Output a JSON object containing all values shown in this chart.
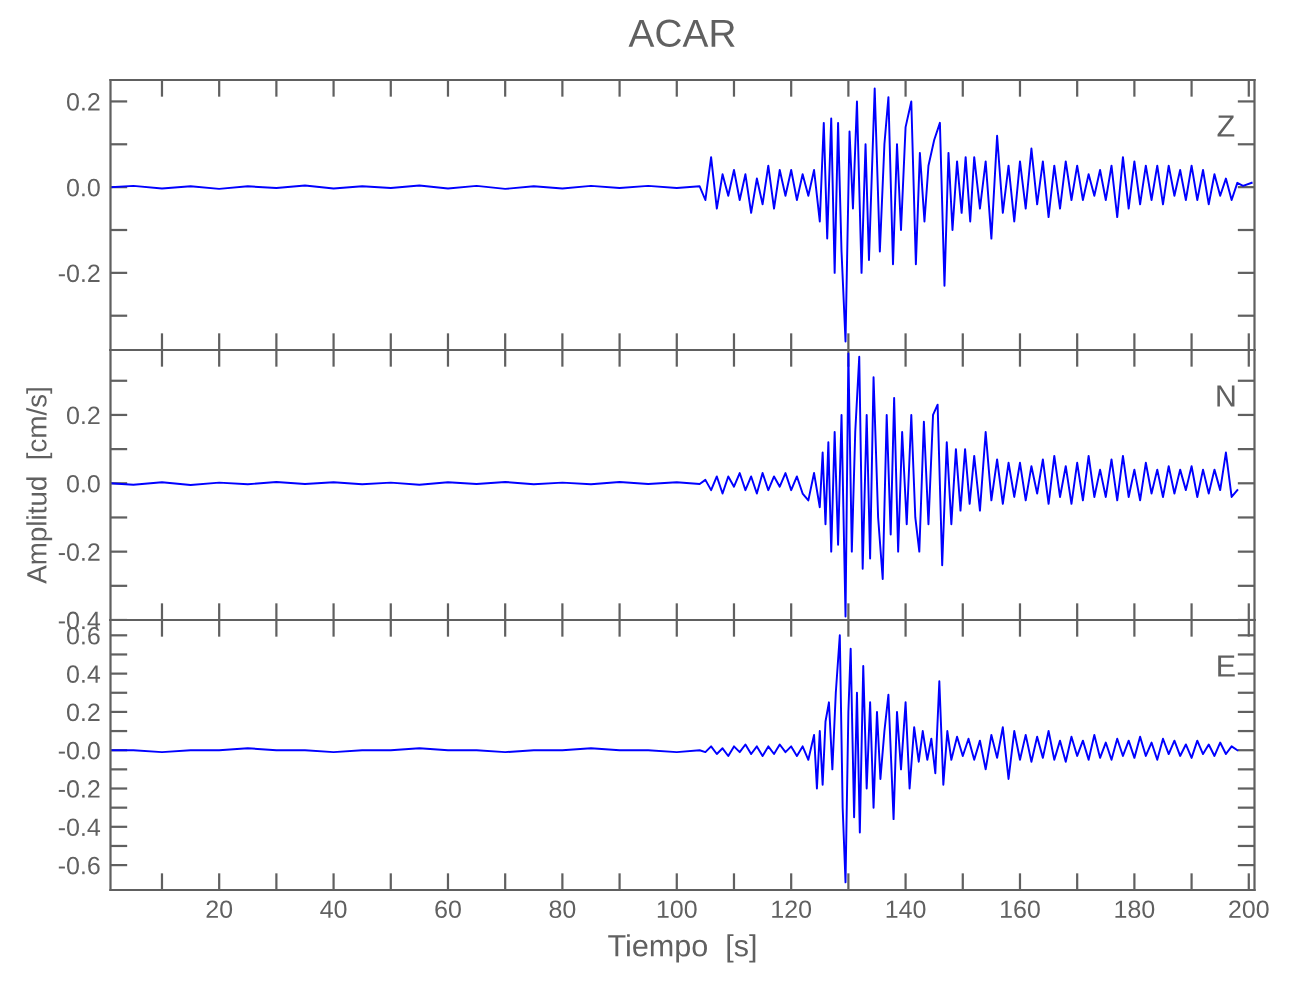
{
  "chart_data": [
    {
      "type": "line",
      "title": "ACAR",
      "annotations": [
        "Z"
      ],
      "tick_labels": "y",
      "xlim": [
        1,
        201
      ],
      "ylim": [
        -0.38,
        0.25
      ],
      "xticks": [
        {
          "value": 10,
          "label": null
        },
        {
          "value": 20,
          "label": null
        },
        {
          "value": 30,
          "label": null
        },
        {
          "value": 40,
          "label": null
        },
        {
          "value": 50,
          "label": null
        },
        {
          "value": 60,
          "label": null
        },
        {
          "value": 70,
          "label": null
        },
        {
          "value": 80,
          "label": null
        },
        {
          "value": 90,
          "label": null
        },
        {
          "value": 100,
          "label": null
        },
        {
          "value": 110,
          "label": null
        },
        {
          "value": 120,
          "label": null
        },
        {
          "value": 130,
          "label": null
        },
        {
          "value": 140,
          "label": null
        },
        {
          "value": 150,
          "label": null
        },
        {
          "value": 160,
          "label": null
        },
        {
          "value": 170,
          "label": null
        },
        {
          "value": 180,
          "label": null
        },
        {
          "value": 190,
          "label": null
        },
        {
          "value": 200,
          "label": null
        }
      ],
      "yticks": [
        {
          "value": -0.3,
          "label": null
        },
        -0.2,
        {
          "value": -0.1,
          "label": null
        },
        {
          "value": 0,
          "label": "0.0"
        },
        {
          "value": 0.1,
          "label": null
        },
        0.2
      ],
      "series": [
        {
          "color": "#0000ff",
          "x": [
            1,
            5,
            10,
            15,
            20,
            25,
            30,
            35,
            40,
            45,
            50,
            55,
            60,
            65,
            70,
            75,
            80,
            85,
            90,
            95,
            100,
            104,
            105,
            106,
            107,
            108,
            109,
            110,
            111,
            112,
            113,
            114,
            115,
            116,
            117,
            118,
            119,
            120,
            121,
            122,
            123,
            124,
            125,
            125.7,
            126.3,
            127,
            127.6,
            128.2,
            128.8,
            129.5,
            130.2,
            130.8,
            131.5,
            132.3,
            133,
            133.6,
            134.6,
            135.5,
            136.3,
            137,
            137.8,
            138.5,
            139.2,
            140,
            141,
            141.8,
            142.5,
            143.3,
            144,
            145,
            146,
            146.8,
            147.5,
            148.2,
            149,
            149.8,
            150.5,
            151.3,
            152,
            153,
            154,
            155,
            156,
            157,
            158,
            159,
            160,
            161,
            162,
            163,
            164,
            165,
            166,
            167,
            168,
            169,
            170,
            171,
            172,
            173,
            174,
            175,
            176,
            177,
            178,
            179,
            180,
            181,
            182,
            183,
            184,
            185,
            186,
            187,
            188,
            189,
            190,
            191,
            192,
            193,
            194,
            195,
            196,
            197,
            198,
            199,
            200.5
          ],
          "values": [
            0,
            0.003,
            -0.003,
            0.002,
            -0.004,
            0.002,
            -0.002,
            0.004,
            -0.003,
            0.002,
            -0.002,
            0.004,
            -0.003,
            0.003,
            -0.004,
            0.002,
            -0.003,
            0.003,
            -0.002,
            0.003,
            -0.002,
            0.002,
            -0.03,
            0.07,
            -0.05,
            0.03,
            -0.02,
            0.04,
            -0.03,
            0.03,
            -0.06,
            0.02,
            -0.04,
            0.05,
            -0.05,
            0.04,
            -0.02,
            0.04,
            -0.03,
            0.03,
            -0.02,
            0.04,
            -0.08,
            0.15,
            -0.12,
            0.16,
            -0.2,
            0.15,
            -0.15,
            -0.36,
            0.13,
            -0.05,
            0.2,
            -0.2,
            0.1,
            -0.17,
            0.23,
            -0.15,
            0.1,
            0.21,
            -0.18,
            0.1,
            -0.1,
            0.14,
            0.2,
            -0.18,
            0.08,
            -0.08,
            0.05,
            0.11,
            0.15,
            -0.23,
            0.08,
            -0.1,
            0.06,
            -0.06,
            0.07,
            -0.08,
            0.07,
            -0.05,
            0.06,
            -0.12,
            0.12,
            -0.06,
            0.05,
            -0.08,
            0.06,
            -0.05,
            0.09,
            -0.04,
            0.06,
            -0.07,
            0.05,
            -0.05,
            0.06,
            -0.03,
            0.05,
            -0.03,
            0.03,
            -0.02,
            0.04,
            -0.03,
            0.05,
            -0.07,
            0.07,
            -0.05,
            0.06,
            -0.04,
            0.05,
            -0.03,
            0.05,
            -0.04,
            0.05,
            -0.02,
            0.04,
            -0.03,
            0.05,
            -0.03,
            0.04,
            -0.04,
            0.03,
            -0.02,
            0.02,
            -0.03,
            0.01,
            0.003,
            0.01
          ]
        }
      ]
    },
    {
      "type": "line",
      "ylabel": "Amplitud  [cm/s]",
      "annotations": [
        "N"
      ],
      "tick_labels": "y",
      "xlim": [
        1,
        201
      ],
      "ylim": [
        -0.4,
        0.39
      ],
      "xticks": [
        {
          "value": 10,
          "label": null
        },
        {
          "value": 20,
          "label": null
        },
        {
          "value": 30,
          "label": null
        },
        {
          "value": 40,
          "label": null
        },
        {
          "value": 50,
          "label": null
        },
        {
          "value": 60,
          "label": null
        },
        {
          "value": 70,
          "label": null
        },
        {
          "value": 80,
          "label": null
        },
        {
          "value": 90,
          "label": null
        },
        {
          "value": 100,
          "label": null
        },
        {
          "value": 110,
          "label": null
        },
        {
          "value": 120,
          "label": null
        },
        {
          "value": 130,
          "label": null
        },
        {
          "value": 140,
          "label": null
        },
        {
          "value": 150,
          "label": null
        },
        {
          "value": 160,
          "label": null
        },
        {
          "value": 170,
          "label": null
        },
        {
          "value": 180,
          "label": null
        },
        {
          "value": 190,
          "label": null
        },
        {
          "value": 200,
          "label": null
        }
      ],
      "yticks": [
        -0.4,
        {
          "value": -0.3,
          "label": null
        },
        -0.2,
        {
          "value": -0.1,
          "label": null
        },
        {
          "value": 0,
          "label": "0.0"
        },
        {
          "value": 0.1,
          "label": null
        },
        0.2,
        {
          "value": 0.3,
          "label": null
        }
      ],
      "series": [
        {
          "color": "#0000ff",
          "x": [
            1,
            5,
            10,
            15,
            20,
            25,
            30,
            35,
            40,
            45,
            50,
            55,
            60,
            65,
            70,
            75,
            80,
            85,
            90,
            95,
            100,
            104,
            105,
            106,
            107,
            108,
            109,
            110,
            111,
            112,
            113,
            114,
            115,
            116,
            117,
            118,
            119,
            120,
            121,
            122,
            123,
            124,
            125,
            125.5,
            126,
            126.5,
            127,
            127.6,
            128.2,
            128.8,
            129.5,
            130,
            130.6,
            131.2,
            131.9,
            132.5,
            133.2,
            133.8,
            134.4,
            135.2,
            136,
            136.7,
            137.4,
            138,
            138.7,
            139.4,
            140.2,
            141,
            141.7,
            142.4,
            143.2,
            144,
            144.8,
            145.6,
            146.4,
            147.2,
            148,
            148.8,
            149.6,
            150.4,
            151.2,
            152,
            153,
            154,
            155,
            156,
            157,
            158,
            159,
            160,
            161,
            162,
            163,
            164,
            165,
            166,
            167,
            168,
            169,
            170,
            171,
            172,
            173,
            174,
            175,
            176,
            177,
            178,
            179,
            180,
            181,
            182,
            183,
            184,
            185,
            186,
            187,
            188,
            189,
            190,
            191,
            192,
            193,
            194,
            195,
            196,
            197,
            198
          ],
          "values": [
            0,
            -0.004,
            0.003,
            -0.005,
            0.002,
            -0.003,
            0.004,
            -0.002,
            0.003,
            -0.003,
            0.002,
            -0.004,
            0.003,
            -0.002,
            0.004,
            -0.003,
            0.002,
            -0.003,
            0.004,
            -0.002,
            0.003,
            -0.002,
            0.01,
            -0.02,
            0.02,
            -0.03,
            0.02,
            -0.01,
            0.03,
            -0.02,
            0.02,
            -0.03,
            0.03,
            -0.02,
            0.02,
            -0.01,
            0.03,
            -0.02,
            0.02,
            -0.03,
            -0.05,
            0.03,
            -0.07,
            0.09,
            -0.12,
            0.12,
            -0.2,
            0.15,
            -0.18,
            0.2,
            -0.39,
            0.38,
            -0.2,
            0.15,
            0.37,
            -0.25,
            0.2,
            -0.22,
            0.31,
            -0.1,
            -0.28,
            0.2,
            -0.15,
            0.25,
            -0.2,
            0.15,
            -0.12,
            0.2,
            -0.1,
            -0.2,
            0.18,
            -0.12,
            0.2,
            0.23,
            -0.24,
            0.12,
            -0.12,
            0.1,
            -0.08,
            0.1,
            -0.06,
            0.08,
            -0.08,
            0.15,
            -0.05,
            0.07,
            -0.06,
            0.06,
            -0.04,
            0.06,
            -0.05,
            0.05,
            -0.03,
            0.07,
            -0.06,
            0.08,
            -0.04,
            0.05,
            -0.06,
            0.06,
            -0.05,
            0.08,
            -0.04,
            0.04,
            -0.04,
            0.07,
            -0.05,
            0.08,
            -0.04,
            0.04,
            -0.05,
            0.06,
            -0.03,
            0.04,
            -0.04,
            0.05,
            -0.03,
            0.04,
            -0.02,
            0.05,
            -0.04,
            0.04,
            -0.03,
            0.04,
            -0.02,
            0.09,
            -0.04,
            -0.02
          ]
        }
      ]
    },
    {
      "type": "line",
      "xlabel": "Tiempo  [s]",
      "annotations": [
        "E"
      ],
      "xlim": [
        1,
        201
      ],
      "ylim": [
        -0.73,
        0.68
      ],
      "xticks": [
        {
          "value": 10,
          "label": null
        },
        20,
        {
          "value": 30,
          "label": null
        },
        40,
        {
          "value": 50,
          "label": null
        },
        60,
        {
          "value": 70,
          "label": null
        },
        80,
        {
          "value": 90,
          "label": null
        },
        100,
        {
          "value": 110,
          "label": null
        },
        120,
        {
          "value": 130,
          "label": null
        },
        140,
        {
          "value": 150,
          "label": null
        },
        160,
        {
          "value": 170,
          "label": null
        },
        180,
        {
          "value": 190,
          "label": null
        },
        200
      ],
      "yticks": [
        -0.6,
        {
          "value": -0.5,
          "label": null
        },
        -0.4,
        {
          "value": -0.3,
          "label": null
        },
        -0.2,
        {
          "value": -0.1,
          "label": null
        },
        {
          "value": 0,
          "label": "-0.0"
        },
        {
          "value": 0.1,
          "label": null
        },
        0.2,
        {
          "value": 0.3,
          "label": null
        },
        0.4,
        {
          "value": 0.5,
          "label": null
        },
        0.6
      ],
      "series": [
        {
          "color": "#0000ff",
          "x": [
            1,
            5,
            10,
            15,
            20,
            25,
            30,
            35,
            40,
            45,
            50,
            55,
            60,
            65,
            70,
            75,
            80,
            85,
            90,
            95,
            100,
            104,
            105,
            106,
            107,
            108,
            109,
            110,
            111,
            112,
            113,
            114,
            115,
            116,
            117,
            118,
            119,
            120,
            121,
            122,
            123,
            124,
            124.5,
            125,
            125.5,
            126,
            126.6,
            127.2,
            127.8,
            128.5,
            129,
            129.5,
            130,
            130.4,
            131,
            131.5,
            132,
            132.6,
            133.2,
            133.8,
            134.4,
            135,
            135.6,
            136.3,
            137,
            137.9,
            138.5,
            139.2,
            140,
            140.7,
            141.5,
            142.3,
            143,
            143.8,
            144.5,
            145.2,
            145.9,
            146.6,
            147.3,
            148,
            149,
            150,
            151,
            152,
            153,
            154,
            155,
            156,
            157,
            158,
            159,
            160,
            161,
            162,
            163,
            164,
            165,
            166,
            167,
            168,
            169,
            170,
            171,
            172,
            173,
            174,
            175,
            176,
            177,
            178,
            179,
            180,
            181,
            182,
            183,
            184,
            185,
            186,
            187,
            188,
            189,
            190,
            191,
            192,
            193,
            194,
            195,
            196,
            197,
            198
          ],
          "values": [
            0,
            0,
            -0.01,
            0,
            0,
            0.01,
            0,
            0,
            -0.01,
            0,
            0,
            0.01,
            0,
            0,
            -0.01,
            0,
            0,
            0.01,
            0,
            0,
            -0.01,
            0,
            -0.01,
            0.02,
            -0.02,
            0.01,
            -0.03,
            0.02,
            -0.01,
            0.03,
            -0.02,
            0.02,
            -0.03,
            0.02,
            -0.02,
            0.03,
            -0.01,
            0.02,
            -0.03,
            0.02,
            -0.05,
            0.08,
            -0.2,
            0.1,
            -0.18,
            0.15,
            0.25,
            -0.1,
            0.3,
            0.6,
            -0.3,
            -0.69,
            0.2,
            0.53,
            -0.35,
            0.3,
            -0.43,
            0.44,
            -0.2,
            0.25,
            -0.3,
            0.2,
            -0.15,
            0.1,
            0.29,
            -0.36,
            0.2,
            -0.1,
            0.25,
            -0.2,
            0.12,
            -0.06,
            0.1,
            -0.05,
            0.06,
            -0.12,
            0.36,
            -0.18,
            0.1,
            -0.05,
            0.07,
            -0.03,
            0.06,
            -0.05,
            0.05,
            -0.1,
            0.08,
            -0.04,
            0.12,
            -0.15,
            0.1,
            -0.05,
            0.08,
            -0.06,
            0.07,
            -0.04,
            0.1,
            -0.05,
            0.05,
            -0.06,
            0.07,
            -0.03,
            0.05,
            -0.05,
            0.08,
            -0.04,
            0.04,
            -0.05,
            0.06,
            -0.03,
            0.05,
            -0.04,
            0.07,
            -0.03,
            0.04,
            -0.05,
            0.06,
            -0.02,
            0.05,
            -0.03,
            0.03,
            -0.04,
            0.05,
            -0.02,
            0.03,
            -0.03,
            0.04,
            -0.02,
            0.02,
            0
          ]
        }
      ]
    }
  ]
}
